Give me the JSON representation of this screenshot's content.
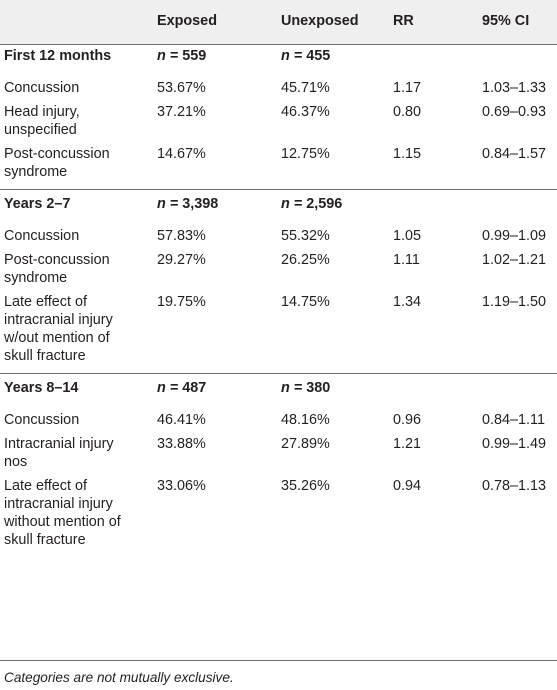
{
  "headers": [
    "",
    "Exposed",
    "Unexposed",
    "RR",
    "95% CI"
  ],
  "sections": [
    {
      "title": "First 12 months",
      "n_exposed": "559",
      "n_unexposed": "455",
      "rows": [
        {
          "label": [
            "Concussion"
          ],
          "exposed": "53.67%",
          "unexposed": "45.71%",
          "rr": "1.17",
          "ci": "1.03–1.33"
        },
        {
          "label": [
            "Head injury,",
            "unspecified"
          ],
          "exposed": "37.21%",
          "unexposed": "46.37%",
          "rr": "0.80",
          "ci": "0.69–0.93"
        },
        {
          "label": [
            "Post-concussion",
            "syndrome"
          ],
          "exposed": "14.67%",
          "unexposed": "12.75%",
          "rr": "1.15",
          "ci": "0.84–1.57"
        }
      ]
    },
    {
      "title": "Years 2–7",
      "n_exposed": "3,398",
      "n_unexposed": "2,596",
      "rows": [
        {
          "label": [
            "Concussion"
          ],
          "exposed": "57.83%",
          "unexposed": "55.32%",
          "rr": "1.05",
          "ci": "0.99–1.09"
        },
        {
          "label": [
            "Post-concussion",
            "syndrome"
          ],
          "exposed": "29.27%",
          "unexposed": "26.25%",
          "rr": "1.11",
          "ci": "1.02–1.21"
        },
        {
          "label": [
            "Late effect of",
            "intracranial injury",
            "w/out mention of",
            "skull fracture"
          ],
          "exposed": "19.75%",
          "unexposed": "14.75%",
          "rr": "1.34",
          "ci": "1.19–1.50"
        }
      ]
    },
    {
      "title": "Years 8–14",
      "n_exposed": "487",
      "n_unexposed": "380",
      "rows": [
        {
          "label": [
            "Concussion"
          ],
          "exposed": "46.41%",
          "unexposed": "48.16%",
          "rr": "0.96",
          "ci": "0.84–1.11"
        },
        {
          "label": [
            "Intracranial injury",
            "nos"
          ],
          "exposed": "33.88%",
          "unexposed": "27.89%",
          "rr": "1.21",
          "ci": "0.99–1.49"
        },
        {
          "label": [
            "Late effect of",
            "intracranial injury",
            "without mention of",
            "skull fracture"
          ],
          "exposed": "33.06%",
          "unexposed": "35.26%",
          "rr": "0.94",
          "ci": "0.78–1.13"
        }
      ]
    }
  ],
  "n_prefix": "n = ",
  "footnote": "Categories are not mutually exclusive."
}
